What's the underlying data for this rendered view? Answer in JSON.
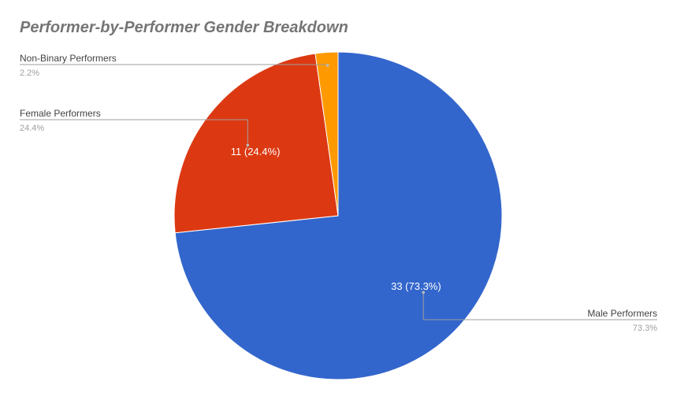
{
  "chart_data": {
    "type": "pie",
    "title": "Performer-by-Performer Gender Breakdown",
    "slices": [
      {
        "name": "Male Performers",
        "value": 33,
        "percent": "73.3%",
        "label": "33 (73.3%)",
        "color": "#3366cc"
      },
      {
        "name": "Female Performers",
        "value": 11,
        "percent": "24.4%",
        "label": "11 (24.4%)",
        "color": "#dc3912"
      },
      {
        "name": "Non-Binary Performers",
        "value": 1,
        "percent": "2.2%",
        "label": "",
        "color": "#ff9900"
      }
    ],
    "legend_position": "labeled-callouts"
  }
}
